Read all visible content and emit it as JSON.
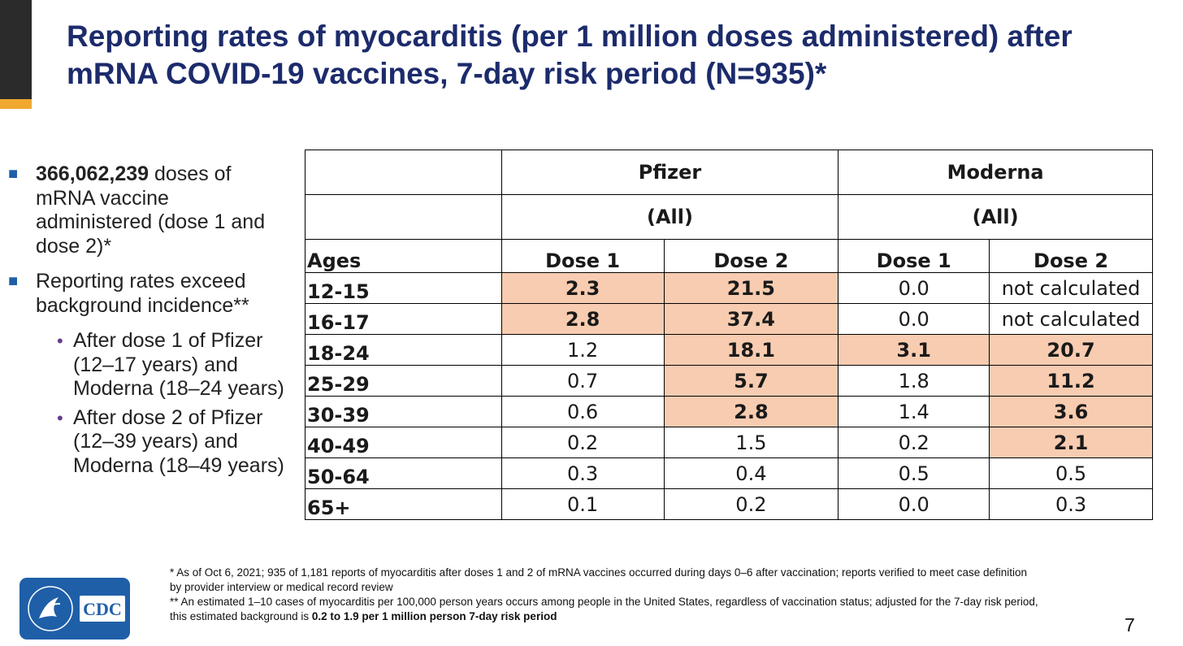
{
  "slide": {
    "title": "Reporting rates of myocarditis (per 1 million doses administered) after mRNA COVID-19 vaccines, 7-day risk period (N=935)*",
    "page_number": "7"
  },
  "bullets": {
    "b1_bold": "366,062,239",
    "b1_rest": " doses of mRNA vaccine administered (dose 1 and dose 2)*",
    "b2": "Reporting rates exceed background incidence**",
    "sub1": "After dose 1 of Pfizer (12–17 years) and Moderna (18–24 years)",
    "sub2": "After dose 2 of Pfizer (12–39 years) and Moderna (18–49 years)"
  },
  "table": {
    "pfizer": "Pfizer",
    "moderna": "Moderna",
    "pfizer_all": "(All)",
    "moderna_all": "(All)",
    "ages": "Ages",
    "dose1": "Dose 1",
    "dose2": "Dose 2",
    "rows": [
      {
        "age": "12-15",
        "p1": "2.3",
        "p2": "21.5",
        "m1": "0.0",
        "m2": "not calculated"
      },
      {
        "age": "16-17",
        "p1": "2.8",
        "p2": "37.4",
        "m1": "0.0",
        "m2": "not calculated"
      },
      {
        "age": "18-24",
        "p1": "1.2",
        "p2": "18.1",
        "m1": "3.1",
        "m2": "20.7"
      },
      {
        "age": "25-29",
        "p1": "0.7",
        "p2": "5.7",
        "m1": "1.8",
        "m2": "11.2"
      },
      {
        "age": "30-39",
        "p1": "0.6",
        "p2": "2.8",
        "m1": "1.4",
        "m2": "3.6"
      },
      {
        "age": "40-49",
        "p1": "0.2",
        "p2": "1.5",
        "m1": "0.2",
        "m2": "2.1"
      },
      {
        "age": "50-64",
        "p1": "0.3",
        "p2": "0.4",
        "m1": "0.5",
        "m2": "0.5"
      },
      {
        "age": "65+",
        "p1": "0.1",
        "p2": "0.2",
        "m1": "0.0",
        "m2": "0.3"
      }
    ],
    "highlight_color": "#f8ccb0"
  },
  "footnotes": {
    "f1": "* As of Oct 6, 2021; 935 of 1,181 reports  of myocarditis after doses 1 and 2 of mRNA vaccines occurred during days 0–6 after vaccination; reports verified to meet case definition by provider interview or medical record review",
    "f2_pre": "** An estimated 1–10 cases of myocarditis per 100,000 person years occurs among people in the United States, regardless of vaccination status; adjusted for the 7-day risk period, this estimated background is ",
    "f2_bold": "0.2 to 1.9 per 1 million person 7-day risk period"
  },
  "logo": {
    "text": "CDC",
    "color": "#1f5fa8",
    "icon": "hhs-eagle-icon"
  }
}
